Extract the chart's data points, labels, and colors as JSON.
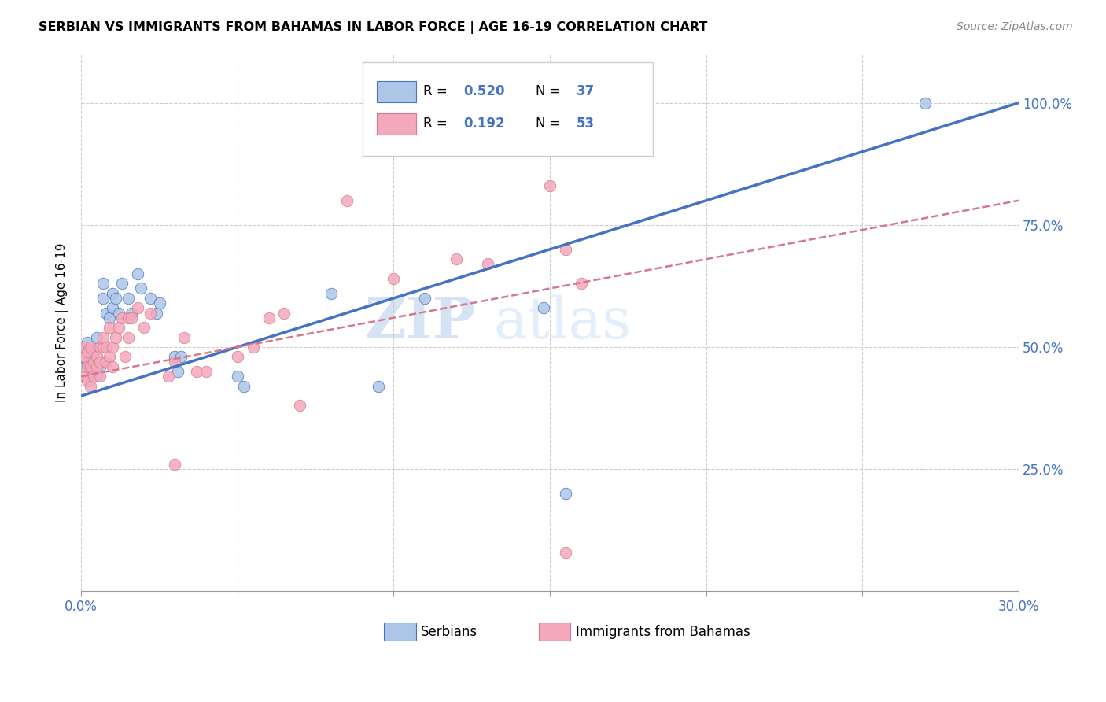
{
  "title": "SERBIAN VS IMMIGRANTS FROM BAHAMAS IN LABOR FORCE | AGE 16-19 CORRELATION CHART",
  "source": "Source: ZipAtlas.com",
  "ylabel": "In Labor Force | Age 16-19",
  "legend_label1": "Serbians",
  "legend_label2": "Immigrants from Bahamas",
  "color_serbian": "#adc6e8",
  "color_bahamas": "#f4a8bc",
  "color_line_serbian": "#4472c4",
  "color_line_bahamas": "#d4788a",
  "watermark_zip": "ZIP",
  "watermark_atlas": "atlas",
  "xlim": [
    0.0,
    0.3
  ],
  "ylim": [
    0.0,
    1.1
  ],
  "serbian_x": [
    0.001,
    0.001,
    0.002,
    0.002,
    0.003,
    0.003,
    0.004,
    0.005,
    0.005,
    0.006,
    0.007,
    0.007,
    0.008,
    0.009,
    0.01,
    0.01,
    0.011,
    0.012,
    0.013,
    0.015,
    0.016,
    0.018,
    0.019,
    0.022,
    0.024,
    0.025,
    0.03,
    0.031,
    0.032,
    0.05,
    0.052,
    0.08,
    0.095,
    0.11,
    0.148,
    0.155,
    0.27
  ],
  "serbian_y": [
    0.46,
    0.5,
    0.47,
    0.51,
    0.45,
    0.48,
    0.49,
    0.44,
    0.52,
    0.46,
    0.6,
    0.63,
    0.57,
    0.56,
    0.58,
    0.61,
    0.6,
    0.57,
    0.63,
    0.6,
    0.57,
    0.65,
    0.62,
    0.6,
    0.57,
    0.59,
    0.48,
    0.45,
    0.48,
    0.44,
    0.42,
    0.61,
    0.42,
    0.6,
    0.58,
    0.2,
    1.0
  ],
  "bahamas_x": [
    0.001,
    0.001,
    0.001,
    0.002,
    0.002,
    0.002,
    0.003,
    0.003,
    0.003,
    0.004,
    0.004,
    0.005,
    0.005,
    0.006,
    0.006,
    0.006,
    0.007,
    0.007,
    0.008,
    0.008,
    0.009,
    0.009,
    0.01,
    0.01,
    0.011,
    0.012,
    0.013,
    0.014,
    0.015,
    0.015,
    0.016,
    0.018,
    0.02,
    0.022,
    0.028,
    0.03,
    0.033,
    0.037,
    0.04,
    0.05,
    0.055,
    0.06,
    0.065,
    0.085,
    0.1,
    0.12,
    0.13,
    0.15,
    0.155,
    0.16,
    0.03,
    0.07,
    0.155
  ],
  "bahamas_y": [
    0.44,
    0.48,
    0.5,
    0.43,
    0.46,
    0.49,
    0.42,
    0.46,
    0.5,
    0.44,
    0.47,
    0.46,
    0.48,
    0.44,
    0.47,
    0.5,
    0.5,
    0.52,
    0.47,
    0.5,
    0.48,
    0.54,
    0.46,
    0.5,
    0.52,
    0.54,
    0.56,
    0.48,
    0.52,
    0.56,
    0.56,
    0.58,
    0.54,
    0.57,
    0.44,
    0.47,
    0.52,
    0.45,
    0.45,
    0.48,
    0.5,
    0.56,
    0.57,
    0.8,
    0.64,
    0.68,
    0.67,
    0.83,
    0.7,
    0.63,
    0.26,
    0.38,
    0.08
  ],
  "line_serbian": [
    0.0,
    0.3,
    0.4,
    1.0
  ],
  "line_bahamas": [
    0.0,
    0.3,
    0.44,
    0.8
  ]
}
